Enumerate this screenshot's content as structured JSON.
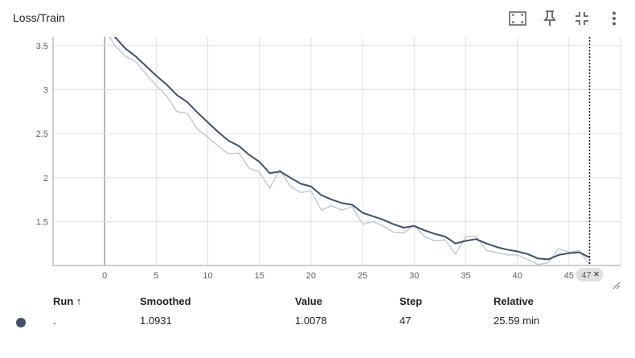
{
  "card": {
    "title": "Loss/Train"
  },
  "toolbar": {
    "icons": [
      "fit-domain-icon",
      "pin-icon",
      "collapse-icon",
      "more-vert-icon"
    ]
  },
  "chart_data": {
    "type": "line",
    "title": "",
    "xlabel": "",
    "ylabel": "",
    "xlim": [
      -5,
      50
    ],
    "ylim": [
      1.0,
      3.6
    ],
    "x_ticks": [
      "0",
      "5",
      "10",
      "15",
      "20",
      "25",
      "30",
      "35",
      "40",
      "45"
    ],
    "y_ticks": [
      "3.5",
      "3",
      "2.5",
      "2",
      "1.5"
    ],
    "hover_step_label": "47",
    "hover_step": 47,
    "series": [
      {
        "color": "#c5cad3",
        "x": [
          0,
          1,
          2,
          3,
          4,
          5,
          6,
          7,
          8,
          9,
          10,
          11,
          12,
          13,
          14,
          15,
          16,
          17,
          18,
          19,
          20,
          21,
          22,
          23,
          24,
          25,
          26,
          27,
          28,
          29,
          30,
          31,
          32,
          33,
          34,
          35,
          36,
          37,
          38,
          39,
          40,
          41,
          42,
          43,
          44,
          45,
          46,
          47
        ],
        "values": [
          3.7,
          3.5,
          3.38,
          3.32,
          3.18,
          3.05,
          2.93,
          2.75,
          2.73,
          2.55,
          2.46,
          2.36,
          2.27,
          2.28,
          2.11,
          2.06,
          1.88,
          2.09,
          1.9,
          1.83,
          1.85,
          1.63,
          1.68,
          1.63,
          1.67,
          1.47,
          1.5,
          1.45,
          1.38,
          1.37,
          1.46,
          1.33,
          1.28,
          1.29,
          1.13,
          1.33,
          1.33,
          1.17,
          1.15,
          1.12,
          1.12,
          1.07,
          1.01,
          1.03,
          1.19,
          1.15,
          1.17,
          1.01
        ]
      },
      {
        "color": "#425066",
        "x": [
          0,
          1,
          2,
          3,
          4,
          5,
          6,
          7,
          8,
          9,
          10,
          11,
          12,
          13,
          14,
          15,
          16,
          17,
          18,
          19,
          20,
          21,
          22,
          23,
          24,
          25,
          26,
          27,
          28,
          29,
          30,
          31,
          32,
          33,
          34,
          35,
          36,
          37,
          38,
          39,
          40,
          41,
          42,
          43,
          44,
          45,
          46,
          47
        ],
        "values": [
          3.72,
          3.6,
          3.47,
          3.38,
          3.27,
          3.16,
          3.06,
          2.94,
          2.86,
          2.74,
          2.63,
          2.52,
          2.42,
          2.36,
          2.26,
          2.18,
          2.05,
          2.07,
          2.0,
          1.93,
          1.9,
          1.8,
          1.75,
          1.71,
          1.69,
          1.6,
          1.56,
          1.52,
          1.47,
          1.43,
          1.45,
          1.4,
          1.36,
          1.33,
          1.25,
          1.28,
          1.3,
          1.25,
          1.21,
          1.18,
          1.16,
          1.13,
          1.08,
          1.07,
          1.12,
          1.14,
          1.15,
          1.09
        ]
      }
    ]
  },
  "table": {
    "headers": {
      "run": "Run ↑",
      "smoothed": "Smoothed",
      "value": "Value",
      "step": "Step",
      "relative": "Relative"
    },
    "rows": [
      {
        "run": ".",
        "smoothed": "1.0931",
        "value": "1.0078",
        "step": "47",
        "relative": "25.59 min",
        "color": "#425066"
      }
    ]
  }
}
